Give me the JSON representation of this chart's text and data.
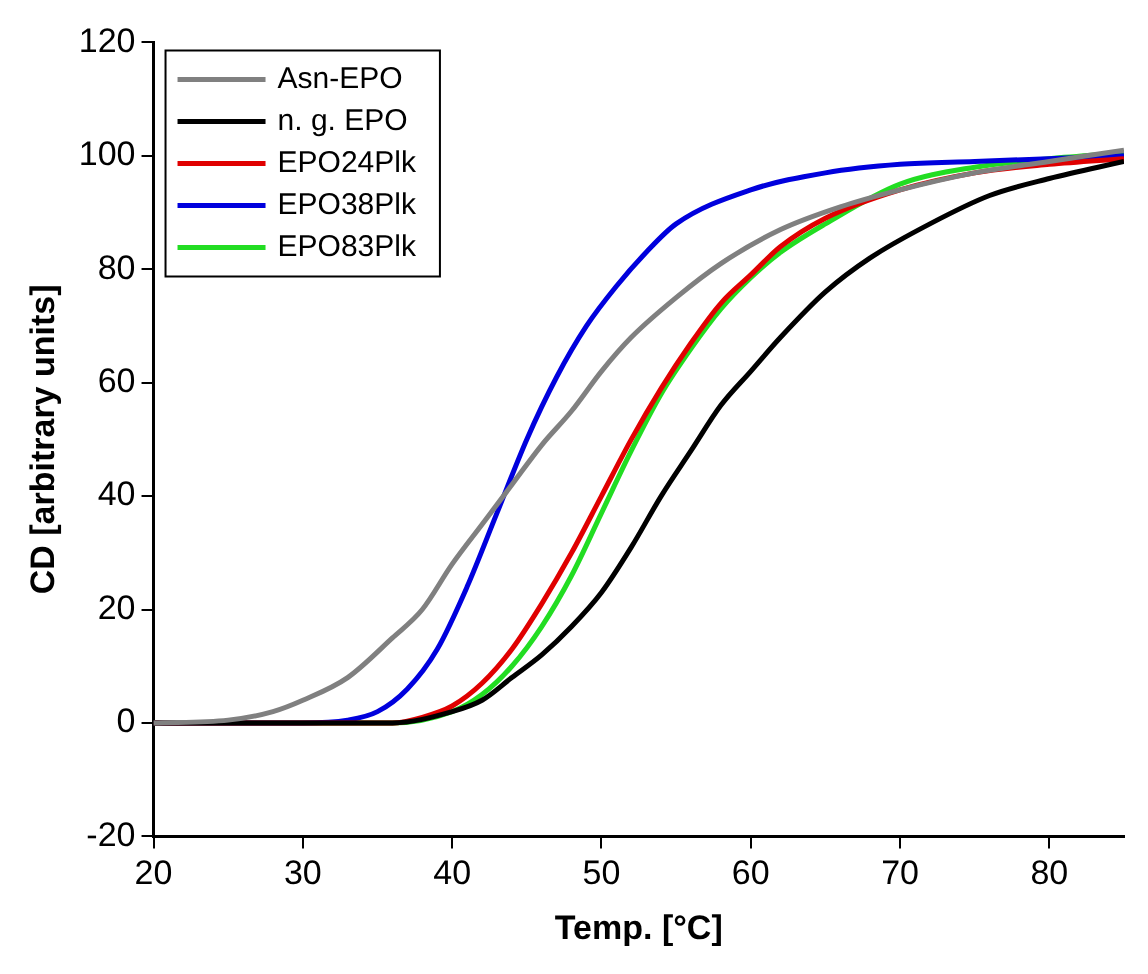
{
  "chart_data": {
    "type": "line",
    "xlabel": "Temp. [°C]",
    "ylabel": "CD [arbitrary units]",
    "xlim": [
      20,
      85
    ],
    "xticks": [
      20,
      30,
      40,
      50,
      60,
      70,
      80
    ],
    "ylim": [
      -20,
      120
    ],
    "yticks": [
      -20,
      0,
      20,
      40,
      60,
      80,
      100,
      120
    ],
    "grid": false,
    "legend": "top left",
    "marker": "none",
    "line_style": "solid",
    "series": [
      {
        "name": "Asn-EPO",
        "color": "#808080",
        "x": [
          20,
          25,
          28,
          30,
          33,
          36,
          38,
          40,
          42,
          44,
          46,
          48,
          50,
          52,
          55,
          58,
          62,
          66,
          70,
          75,
          80,
          85
        ],
        "values": [
          0,
          0.5,
          2,
          4,
          8,
          15,
          20,
          28,
          35,
          42,
          49,
          55,
          62,
          68,
          75,
          81,
          87,
          91,
          94,
          97,
          99,
          101
        ]
      },
      {
        "name": "n. g. EPO",
        "color": "#000000",
        "x": [
          20,
          36,
          40,
          42,
          44,
          46,
          48,
          50,
          52,
          54,
          56,
          58,
          60,
          62,
          65,
          68,
          72,
          76,
          80,
          85
        ],
        "values": [
          0,
          0,
          2,
          4,
          8,
          12,
          17,
          23,
          31,
          40,
          48,
          56,
          62,
          68,
          76,
          82,
          88,
          93,
          96,
          99
        ]
      },
      {
        "name": "EPO24Plk",
        "color": "#e00000",
        "x": [
          20,
          36,
          38,
          40,
          42,
          44,
          46,
          48,
          50,
          52,
          54,
          56,
          58,
          60,
          62,
          65,
          70,
          75,
          80,
          85
        ],
        "values": [
          0,
          0,
          1,
          3,
          7,
          13,
          21,
          30,
          40,
          50,
          59,
          67,
          74,
          79,
          84,
          89,
          94,
          97,
          98.5,
          99.5
        ]
      },
      {
        "name": "EPO38Plk",
        "color": "#0000dd",
        "x": [
          20,
          30,
          33,
          35,
          37,
          39,
          41,
          43,
          45,
          47,
          49,
          51,
          53,
          55,
          60,
          65,
          70,
          75,
          85
        ],
        "values": [
          0,
          0,
          0.5,
          2,
          6,
          13,
          24,
          37,
          50,
          61,
          70,
          77,
          83,
          88,
          94,
          97,
          98.5,
          99,
          100
        ]
      },
      {
        "name": "EPO83Plk",
        "color": "#22dd22",
        "x": [
          20,
          36,
          40,
          42,
          44,
          46,
          48,
          50,
          52,
          54,
          56,
          58,
          60,
          62,
          65,
          70,
          75,
          80,
          85
        ],
        "values": [
          0,
          0,
          2,
          5,
          10,
          17,
          26,
          37,
          48,
          58,
          66,
          73,
          78.5,
          83,
          88,
          95,
          98,
          99.5,
          100.5
        ]
      }
    ]
  }
}
